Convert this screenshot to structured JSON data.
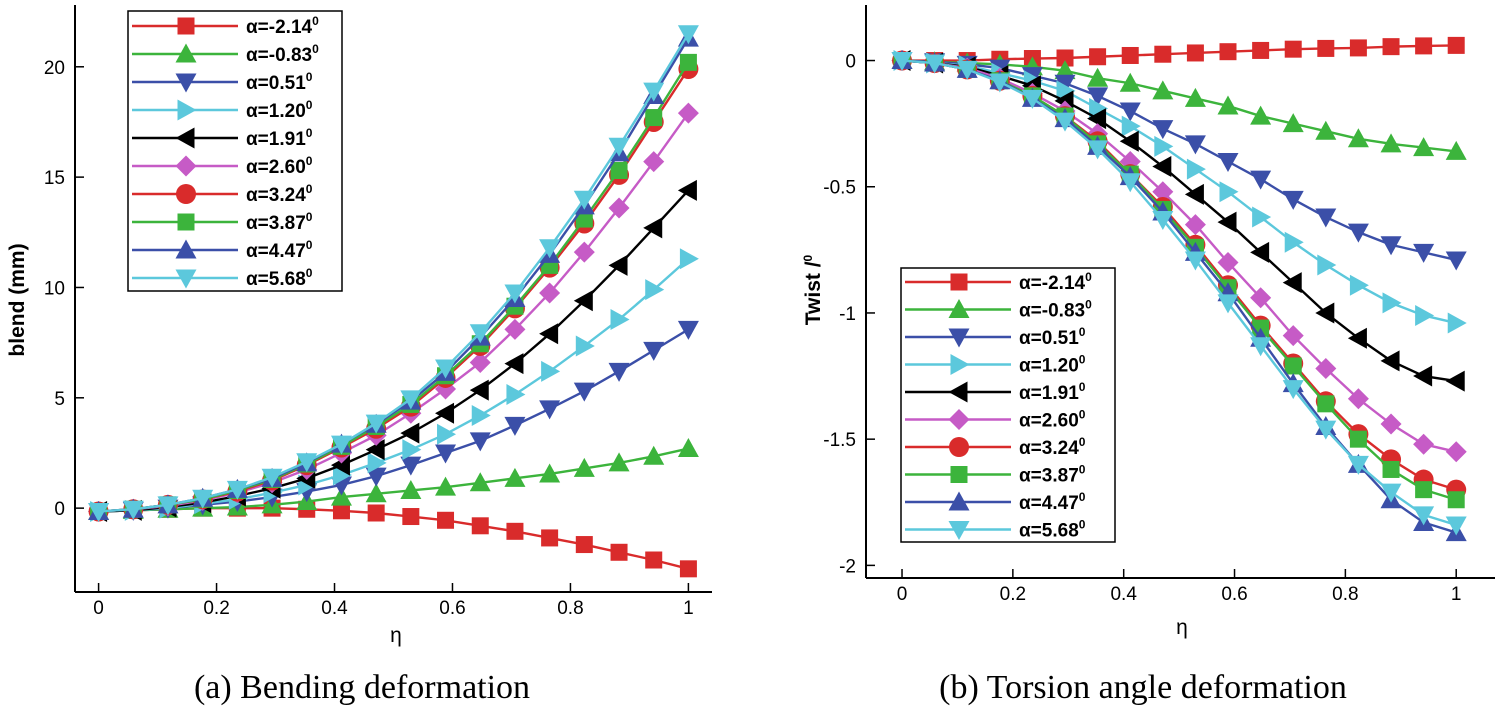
{
  "chart_data": [
    {
      "type": "line",
      "caption": "(a) Bending deformation",
      "xlabel": "η",
      "ylabel": "blend (mm)",
      "xlim": [
        -0.04,
        1.04
      ],
      "ylim": [
        -3.8,
        22.8
      ],
      "xticks": [
        "0",
        "0.2",
        "0.4",
        "0.6",
        "0.8",
        "1"
      ],
      "yticks": [
        "0",
        "5",
        "10",
        "15",
        "20"
      ],
      "legend_position": "top-left",
      "x": [
        0,
        0.0588,
        0.1176,
        0.1765,
        0.2353,
        0.2941,
        0.3529,
        0.4118,
        0.4706,
        0.5294,
        0.5882,
        0.6471,
        0.7059,
        0.7647,
        0.8235,
        0.8824,
        0.9412,
        1.0
      ],
      "series": [
        {
          "name": "α=-2.14",
          "values": [
            -0.15,
            -0.1,
            -0.05,
            0,
            0,
            0,
            -0.05,
            -0.12,
            -0.22,
            -0.38,
            -0.55,
            -0.8,
            -1.05,
            -1.35,
            -1.65,
            -2.0,
            -2.35,
            -2.75
          ]
        },
        {
          "name": "α=-0.83",
          "values": [
            -0.15,
            -0.1,
            -0.05,
            0,
            0.05,
            0.15,
            0.3,
            0.5,
            0.65,
            0.8,
            0.95,
            1.15,
            1.35,
            1.55,
            1.8,
            2.05,
            2.35,
            2.7
          ]
        },
        {
          "name": "α=0.51",
          "values": [
            -0.15,
            -0.1,
            0,
            0.15,
            0.3,
            0.5,
            0.75,
            1.05,
            1.45,
            1.95,
            2.5,
            3.05,
            3.75,
            4.5,
            5.3,
            6.2,
            7.15,
            8.1
          ]
        },
        {
          "name": "α=1.20",
          "values": [
            -0.15,
            -0.1,
            0,
            0.2,
            0.4,
            0.7,
            1.05,
            1.5,
            2.05,
            2.65,
            3.35,
            4.2,
            5.15,
            6.2,
            7.35,
            8.55,
            9.9,
            11.3
          ]
        },
        {
          "name": "α=1.91",
          "values": [
            -0.15,
            -0.1,
            0.05,
            0.25,
            0.55,
            0.9,
            1.35,
            1.95,
            2.65,
            3.4,
            4.3,
            5.35,
            6.55,
            7.9,
            9.4,
            11.0,
            12.7,
            14.4
          ]
        },
        {
          "name": "α=2.60",
          "values": [
            -0.15,
            -0.05,
            0.1,
            0.35,
            0.7,
            1.15,
            1.75,
            2.5,
            3.3,
            4.3,
            5.4,
            6.6,
            8.1,
            9.75,
            11.6,
            13.6,
            15.7,
            17.9
          ]
        },
        {
          "name": "α=3.24",
          "values": [
            -0.15,
            -0.05,
            0.15,
            0.4,
            0.75,
            1.25,
            1.95,
            2.75,
            3.6,
            4.6,
            5.9,
            7.35,
            9.05,
            10.9,
            12.9,
            15.1,
            17.5,
            19.9
          ]
        },
        {
          "name": "α=3.87",
          "values": [
            -0.15,
            -0.05,
            0.15,
            0.4,
            0.8,
            1.3,
            2.0,
            2.8,
            3.7,
            4.7,
            6.0,
            7.45,
            9.15,
            11.0,
            13.1,
            15.3,
            17.7,
            20.2
          ]
        },
        {
          "name": "α=4.47",
          "values": [
            -0.15,
            -0.05,
            0.15,
            0.45,
            0.85,
            1.35,
            2.05,
            2.9,
            3.8,
            4.85,
            6.15,
            7.75,
            9.5,
            11.5,
            13.7,
            16.1,
            18.7,
            21.3
          ]
        },
        {
          "name": "α=5.68",
          "values": [
            -0.15,
            -0.05,
            0.15,
            0.45,
            0.85,
            1.4,
            2.1,
            2.9,
            3.85,
            4.95,
            6.35,
            7.95,
            9.75,
            11.8,
            14.0,
            16.4,
            18.9,
            21.5
          ]
        }
      ]
    },
    {
      "type": "line",
      "caption": "(b) Torsion angle deformation",
      "xlabel": "η",
      "ylabel": "Twist /",
      "ylabel_superscript": "0",
      "xlim": [
        -0.065,
        1.07
      ],
      "ylim": [
        -2.05,
        0.22
      ],
      "xticks": [
        "0",
        "0.2",
        "0.4",
        "0.6",
        "0.8",
        "1"
      ],
      "yticks": [
        "0",
        "-0.5",
        "-1",
        "-1.5",
        "-2"
      ],
      "legend_position": "bottom-left",
      "x": [
        0,
        0.0588,
        0.1176,
        0.1765,
        0.2353,
        0.2941,
        0.3529,
        0.4118,
        0.4706,
        0.5294,
        0.5882,
        0.6471,
        0.7059,
        0.7647,
        0.8235,
        0.8824,
        0.9412,
        1.0
      ],
      "series": [
        {
          "name": "α=-2.14",
          "values": [
            0,
            0,
            0,
            0.005,
            0.008,
            0.01,
            0.015,
            0.02,
            0.025,
            0.03,
            0.035,
            0.04,
            0.045,
            0.048,
            0.05,
            0.055,
            0.058,
            0.06
          ]
        },
        {
          "name": "α=-0.83",
          "values": [
            0,
            -0.005,
            -0.01,
            -0.015,
            -0.025,
            -0.04,
            -0.07,
            -0.09,
            -0.12,
            -0.15,
            -0.18,
            -0.22,
            -0.25,
            -0.28,
            -0.31,
            -0.33,
            -0.345,
            -0.36
          ]
        },
        {
          "name": "α=0.51",
          "values": [
            0,
            -0.005,
            -0.015,
            -0.03,
            -0.06,
            -0.09,
            -0.14,
            -0.2,
            -0.27,
            -0.33,
            -0.4,
            -0.47,
            -0.55,
            -0.62,
            -0.68,
            -0.73,
            -0.76,
            -0.79
          ]
        },
        {
          "name": "α=1.20",
          "values": [
            0,
            -0.01,
            -0.02,
            -0.05,
            -0.08,
            -0.12,
            -0.19,
            -0.26,
            -0.34,
            -0.43,
            -0.52,
            -0.62,
            -0.72,
            -0.81,
            -0.89,
            -0.96,
            -1.01,
            -1.04
          ]
        },
        {
          "name": "α=1.91",
          "values": [
            0,
            -0.01,
            -0.025,
            -0.06,
            -0.1,
            -0.16,
            -0.23,
            -0.32,
            -0.42,
            -0.53,
            -0.64,
            -0.76,
            -0.88,
            -1.0,
            -1.1,
            -1.19,
            -1.25,
            -1.27
          ]
        },
        {
          "name": "α=2.60",
          "values": [
            0,
            -0.01,
            -0.03,
            -0.07,
            -0.13,
            -0.2,
            -0.29,
            -0.4,
            -0.52,
            -0.65,
            -0.8,
            -0.94,
            -1.09,
            -1.22,
            -1.34,
            -1.44,
            -1.52,
            -1.55
          ]
        },
        {
          "name": "α=3.24",
          "values": [
            0,
            -0.01,
            -0.035,
            -0.08,
            -0.14,
            -0.22,
            -0.32,
            -0.45,
            -0.58,
            -0.73,
            -0.89,
            -1.05,
            -1.2,
            -1.35,
            -1.48,
            -1.58,
            -1.66,
            -1.7
          ]
        },
        {
          "name": "α=3.87",
          "values": [
            0,
            -0.01,
            -0.035,
            -0.08,
            -0.14,
            -0.22,
            -0.33,
            -0.45,
            -0.59,
            -0.74,
            -0.9,
            -1.06,
            -1.21,
            -1.36,
            -1.5,
            -1.62,
            -1.7,
            -1.74
          ]
        },
        {
          "name": "α=4.47",
          "values": [
            0,
            -0.01,
            -0.035,
            -0.08,
            -0.15,
            -0.23,
            -0.34,
            -0.46,
            -0.6,
            -0.76,
            -0.92,
            -1.1,
            -1.28,
            -1.45,
            -1.6,
            -1.74,
            -1.83,
            -1.87
          ]
        },
        {
          "name": "α=5.68",
          "values": [
            0,
            -0.01,
            -0.035,
            -0.085,
            -0.15,
            -0.24,
            -0.35,
            -0.48,
            -0.63,
            -0.79,
            -0.96,
            -1.13,
            -1.3,
            -1.46,
            -1.6,
            -1.71,
            -1.8,
            -1.84
          ]
        }
      ]
    }
  ],
  "legend": {
    "superscript": "0",
    "styles": [
      {
        "color": "#d92b2b",
        "marker": "square"
      },
      {
        "color": "#3cb43c",
        "marker": "triangle-up"
      },
      {
        "color": "#3b4fa8",
        "marker": "triangle-down"
      },
      {
        "color": "#5cc8dc",
        "marker": "triangle-right"
      },
      {
        "color": "#000000",
        "marker": "triangle-left"
      },
      {
        "color": "#c65bc6",
        "marker": "diamond"
      },
      {
        "color": "#d92b2b",
        "marker": "circle"
      },
      {
        "color": "#3cb43c",
        "marker": "square"
      },
      {
        "color": "#3b4fa8",
        "marker": "triangle-up"
      },
      {
        "color": "#5cc8dc",
        "marker": "triangle-down"
      }
    ]
  }
}
